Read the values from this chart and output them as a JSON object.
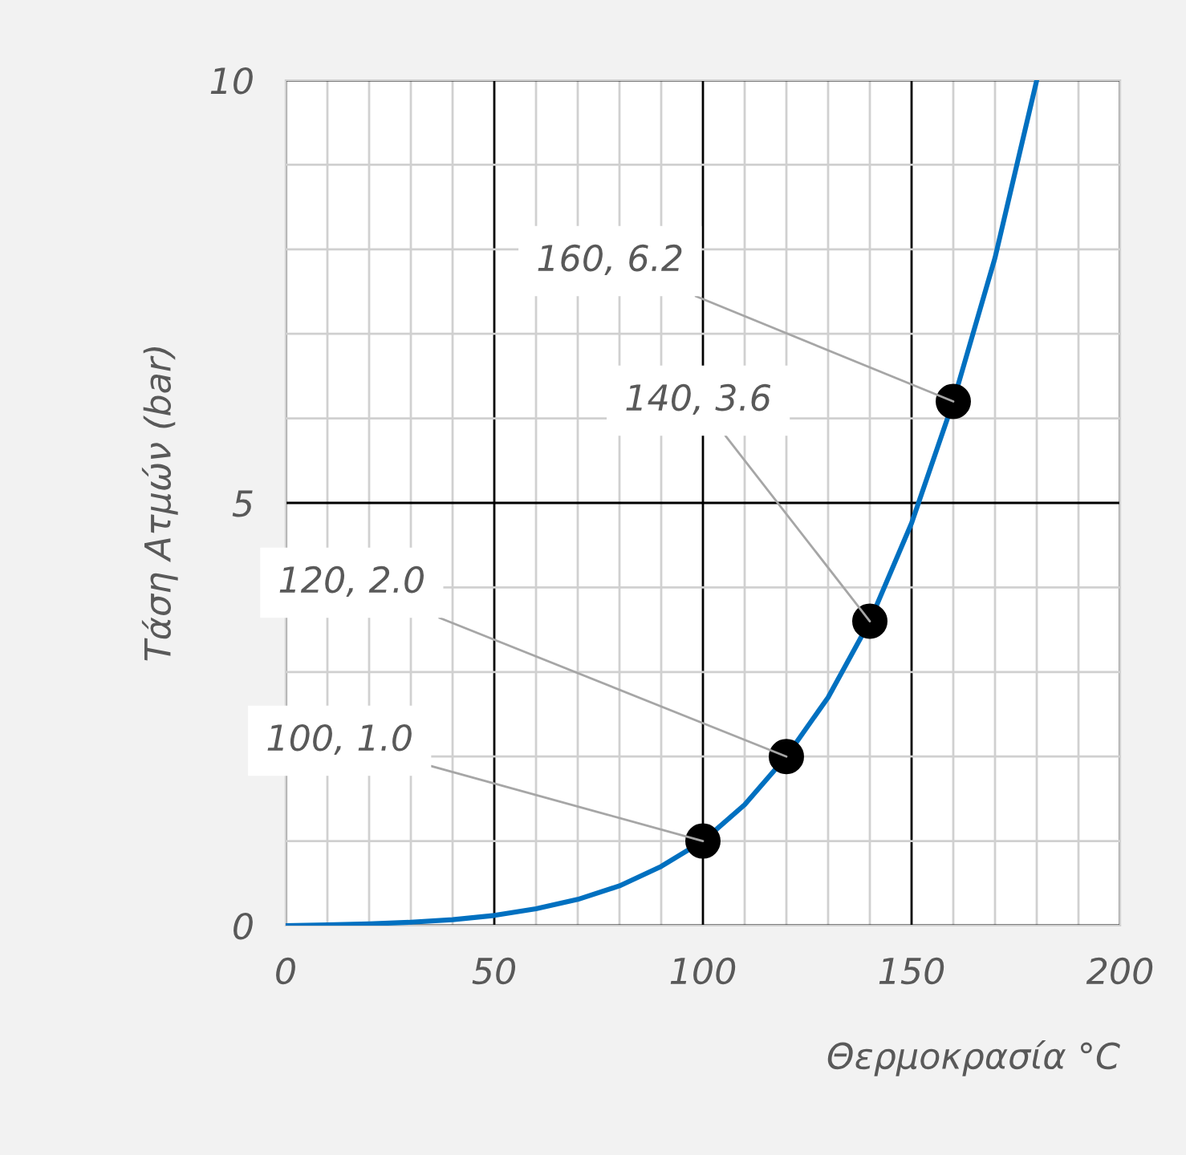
{
  "chart_data": {
    "type": "line",
    "xlabel": "Θερμοκρασία °C",
    "ylabel": "Τάση Ατμών (bar)",
    "x": [
      0,
      10,
      20,
      30,
      40,
      50,
      60,
      70,
      80,
      90,
      100,
      110,
      120,
      130,
      140,
      150,
      160,
      170,
      180
    ],
    "series": [
      {
        "color": "#0070c0",
        "marker": "none",
        "values": [
          0.0,
          0.01,
          0.02,
          0.04,
          0.07,
          0.12,
          0.2,
          0.31,
          0.47,
          0.7,
          1.0,
          1.43,
          2.0,
          2.7,
          3.6,
          4.76,
          6.2,
          7.9,
          10.0
        ]
      },
      {
        "type": "scatter",
        "color": "#000000",
        "marker": "circle",
        "x": [
          100,
          120,
          140,
          160
        ],
        "values": [
          1.0,
          2.0,
          3.6,
          6.2
        ]
      }
    ],
    "annotations": [
      {
        "text": "100, 1.0",
        "x": 100,
        "y": 1.0
      },
      {
        "text": "120, 2.0",
        "x": 120,
        "y": 2.0
      },
      {
        "text": "140, 3.6",
        "x": 140,
        "y": 3.6
      },
      {
        "text": "160, 6.2",
        "x": 160,
        "y": 6.2
      }
    ],
    "xlim": [
      0,
      200
    ],
    "ylim": [
      0,
      10
    ],
    "xticks": [
      0,
      {
        "value": 10,
        "label": null
      },
      {
        "value": 20,
        "label": null
      },
      {
        "value": 30,
        "label": null
      },
      {
        "value": 40,
        "label": null
      },
      50,
      {
        "value": 60,
        "label": null
      },
      {
        "value": 70,
        "label": null
      },
      {
        "value": 80,
        "label": null
      },
      {
        "value": 90,
        "label": null
      },
      100,
      {
        "value": 110,
        "label": null
      },
      {
        "value": 120,
        "label": null
      },
      {
        "value": 130,
        "label": null
      },
      {
        "value": 140,
        "label": null
      },
      150,
      {
        "value": 160,
        "label": null
      },
      {
        "value": 170,
        "label": null
      },
      {
        "value": 180,
        "label": null
      },
      {
        "value": 190,
        "label": null
      },
      200
    ],
    "yticks": [
      0,
      {
        "value": 1,
        "label": null
      },
      {
        "value": 2,
        "label": null
      },
      {
        "value": 3,
        "label": null
      },
      {
        "value": 4,
        "label": null
      },
      5,
      {
        "value": 6,
        "label": null
      },
      {
        "value": 7,
        "label": null
      },
      {
        "value": 8,
        "label": null
      },
      {
        "value": 9,
        "label": null
      },
      10
    ],
    "grid": true,
    "legend": false
  }
}
